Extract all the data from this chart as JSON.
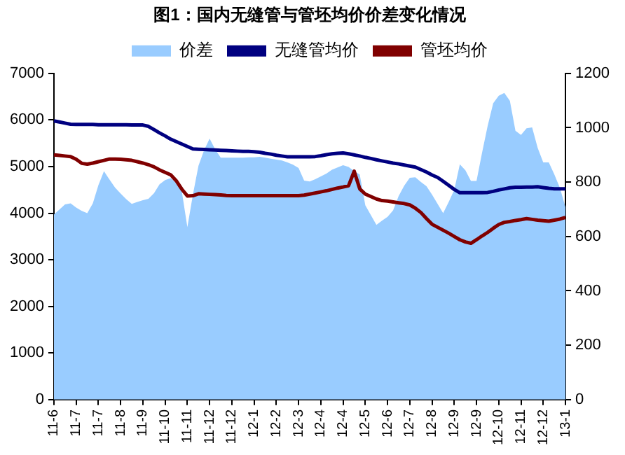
{
  "chart_data": {
    "type": "line",
    "title": "图1：国内无缝管与管坯均价价差变化情况",
    "legend": "top",
    "grid": false,
    "marker": "none",
    "categories": [
      "11-6",
      null,
      null,
      null,
      "11-7",
      null,
      null,
      null,
      "11-7",
      null,
      null,
      null,
      "11-8",
      null,
      null,
      null,
      "11-9",
      null,
      null,
      null,
      "11-10",
      null,
      null,
      null,
      "11-11",
      null,
      null,
      null,
      "11-12",
      null,
      null,
      null,
      "11-12",
      null,
      null,
      null,
      "12-1",
      null,
      null,
      null,
      "12-2",
      null,
      null,
      null,
      "12-3",
      null,
      null,
      null,
      "12-4",
      null,
      null,
      null,
      "12-4",
      null,
      null,
      null,
      "12-5",
      null,
      null,
      null,
      "12-6",
      null,
      null,
      null,
      "12-7",
      null,
      null,
      null,
      "12-8",
      null,
      null,
      null,
      "12-9",
      null,
      null,
      null,
      "12-9",
      null,
      null,
      null,
      "12-10",
      null,
      null,
      null,
      "12-11",
      null,
      null,
      null,
      "12-12",
      null,
      null,
      null,
      "13-1"
    ],
    "ylim": [
      0,
      7000
    ],
    "yticks": [
      0,
      1000,
      2000,
      3000,
      4000,
      5000,
      6000,
      7000
    ],
    "y2lim": [
      0,
      1200
    ],
    "y2ticks": [
      0,
      200,
      400,
      600,
      800,
      1000,
      1200
    ],
    "series": [
      {
        "name": "价差",
        "type": "area",
        "color": "#99ccff",
        "values": [
          3970,
          4080,
          4190,
          4210,
          4120,
          4050,
          4000,
          4210,
          4600,
          4900,
          4720,
          4550,
          4420,
          4300,
          4200,
          4240,
          4280,
          4310,
          4430,
          4620,
          4710,
          4750,
          4650,
          4470,
          3700,
          4400,
          5020,
          5350,
          5600,
          5370,
          5190,
          5190,
          5190,
          5190,
          5190,
          5200,
          5200,
          5210,
          5190,
          5170,
          5150,
          5130,
          5090,
          5040,
          4970,
          4700,
          4680,
          4730,
          4790,
          4850,
          4930,
          4980,
          5030,
          4990,
          4900,
          4830,
          4170,
          3960,
          3750,
          3840,
          3920,
          4060,
          4370,
          4590,
          4760,
          4770,
          4670,
          4580,
          4400,
          4200,
          4000,
          4240,
          4500,
          5050,
          4920,
          4690,
          4690,
          5300,
          5870,
          6360,
          6520,
          6580,
          6410,
          5770,
          5680,
          5820,
          5840,
          5400,
          5090,
          5090,
          4830,
          4540,
          4130
        ]
      },
      {
        "name": "无缝管均价",
        "axis": "y2",
        "color": "#000080",
        "values": [
          1025,
          1021,
          1017,
          1013,
          1012,
          1012,
          1012,
          1012,
          1011,
          1011,
          1011,
          1011,
          1011,
          1011,
          1010,
          1010,
          1010,
          1005,
          993,
          981,
          970,
          958,
          949,
          940,
          931,
          922,
          921,
          920,
          919,
          918,
          917,
          916,
          915,
          914,
          913,
          913,
          912,
          910,
          906,
          903,
          899,
          896,
          893,
          893,
          893,
          893,
          893,
          894,
          897,
          901,
          904,
          906,
          907,
          904,
          900,
          896,
          891,
          887,
          882,
          878,
          874,
          870,
          867,
          863,
          859,
          855,
          846,
          837,
          826,
          817,
          803,
          788,
          773,
          761,
          761,
          761,
          761,
          761,
          762,
          766,
          771,
          775,
          779,
          781,
          781,
          782,
          782,
          783,
          780,
          777,
          775,
          775,
          775
        ]
      },
      {
        "name": "管坯均价",
        "axis": "y2",
        "color": "#800000",
        "values": [
          900,
          898,
          896,
          894,
          884,
          869,
          866,
          870,
          875,
          880,
          885,
          885,
          884,
          882,
          880,
          875,
          870,
          864,
          856,
          845,
          836,
          827,
          805,
          774,
          749,
          750,
          757,
          756,
          755,
          754,
          753,
          751,
          750,
          750,
          750,
          750,
          750,
          750,
          750,
          750,
          750,
          750,
          750,
          750,
          750,
          752,
          756,
          760,
          764,
          768,
          773,
          778,
          782,
          787,
          840,
          775,
          756,
          747,
          738,
          732,
          730,
          727,
          724,
          721,
          716,
          704,
          688,
          666,
          645,
          634,
          623,
          612,
          600,
          588,
          580,
          575,
          588,
          602,
          615,
          630,
          644,
          652,
          655,
          659,
          662,
          666,
          663,
          660,
          658,
          656,
          660,
          664,
          670
        ]
      }
    ]
  }
}
